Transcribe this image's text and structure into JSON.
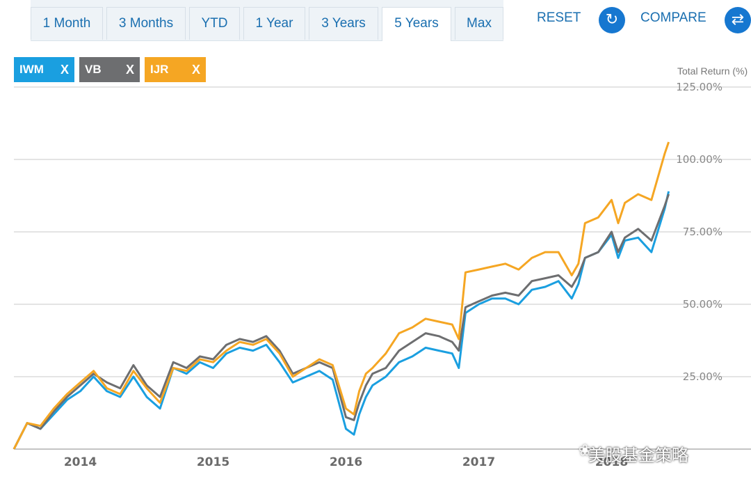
{
  "tabs": [
    {
      "label": "1 Month"
    },
    {
      "label": "3 Months"
    },
    {
      "label": "YTD"
    },
    {
      "label": "1 Year"
    },
    {
      "label": "3 Years"
    },
    {
      "label": "5 Years",
      "active": true
    },
    {
      "label": "Max"
    }
  ],
  "actions": {
    "reset_label": "RESET",
    "compare_label": "COMPARE",
    "reset_icon": "refresh-icon",
    "compare_icon": "swap-arrows-icon"
  },
  "tickers": [
    {
      "symbol": "IWM",
      "color": "#1a9fe0"
    },
    {
      "symbol": "VB",
      "color": "#6d6e70"
    },
    {
      "symbol": "IJR",
      "color": "#f5a623"
    }
  ],
  "chip_remove_label": "X",
  "watermark": "美股基金策略",
  "chart_data": {
    "type": "line",
    "ylabel": "Total Return (%)",
    "ylim": [
      0,
      125
    ],
    "y_ticks": [
      "25.00%",
      "50.00%",
      "75.00%",
      "100.00%",
      "125.00%"
    ],
    "y_tick_values": [
      25,
      50,
      75,
      100,
      125
    ],
    "x_range": [
      2013.5,
      2018.5
    ],
    "x_ticks": [
      "2014",
      "2015",
      "2016",
      "2017",
      "2018"
    ],
    "x_tick_values": [
      2014,
      2015,
      2016,
      2017,
      2018
    ],
    "grid": true,
    "series": [
      {
        "name": "IWM",
        "color": "#1a9fe0",
        "x": [
          2013.5,
          2013.6,
          2013.7,
          2013.8,
          2013.9,
          2014.0,
          2014.1,
          2014.2,
          2014.3,
          2014.4,
          2014.5,
          2014.6,
          2014.7,
          2014.8,
          2014.9,
          2015.0,
          2015.1,
          2015.2,
          2015.3,
          2015.4,
          2015.5,
          2015.6,
          2015.7,
          2015.8,
          2015.9,
          2016.0,
          2016.06,
          2016.1,
          2016.15,
          2016.2,
          2016.3,
          2016.4,
          2016.5,
          2016.6,
          2016.7,
          2016.8,
          2016.85,
          2016.9,
          2017.0,
          2017.1,
          2017.2,
          2017.3,
          2017.4,
          2017.5,
          2017.6,
          2017.7,
          2017.75,
          2017.8,
          2017.9,
          2018.0,
          2018.05,
          2018.1,
          2018.2,
          2018.3,
          2018.4,
          2018.43
        ],
        "values": [
          0,
          9,
          7,
          12,
          17,
          20,
          25,
          20,
          18,
          25,
          18,
          14,
          28,
          26,
          30,
          28,
          33,
          35,
          34,
          36,
          30,
          23,
          25,
          27,
          24,
          7,
          5,
          12,
          18,
          22,
          25,
          30,
          32,
          35,
          34,
          33,
          28,
          47,
          50,
          52,
          52,
          50,
          55,
          56,
          58,
          52,
          57,
          66,
          68,
          74,
          66,
          72,
          73,
          68,
          83,
          89
        ]
      },
      {
        "name": "VB",
        "color": "#6d6e70",
        "x": [
          2013.5,
          2013.6,
          2013.7,
          2013.8,
          2013.9,
          2014.0,
          2014.1,
          2014.2,
          2014.3,
          2014.4,
          2014.5,
          2014.6,
          2014.7,
          2014.8,
          2014.9,
          2015.0,
          2015.1,
          2015.2,
          2015.3,
          2015.4,
          2015.5,
          2015.6,
          2015.7,
          2015.8,
          2015.9,
          2016.0,
          2016.06,
          2016.1,
          2016.15,
          2016.2,
          2016.3,
          2016.4,
          2016.5,
          2016.6,
          2016.7,
          2016.8,
          2016.85,
          2016.9,
          2017.0,
          2017.1,
          2017.2,
          2017.3,
          2017.4,
          2017.5,
          2017.6,
          2017.7,
          2017.75,
          2017.8,
          2017.9,
          2018.0,
          2018.05,
          2018.1,
          2018.2,
          2018.3,
          2018.4,
          2018.43
        ],
        "values": [
          0,
          9,
          7,
          13,
          18,
          22,
          26,
          23,
          21,
          29,
          22,
          18,
          30,
          28,
          32,
          31,
          36,
          38,
          37,
          39,
          34,
          26,
          28,
          30,
          28,
          11,
          10,
          16,
          22,
          26,
          28,
          34,
          37,
          40,
          39,
          37,
          34,
          49,
          51,
          53,
          54,
          53,
          58,
          59,
          60,
          56,
          60,
          66,
          68,
          75,
          68,
          73,
          76,
          72,
          84,
          88
        ]
      },
      {
        "name": "IJR",
        "color": "#f5a623",
        "x": [
          2013.5,
          2013.6,
          2013.7,
          2013.8,
          2013.9,
          2014.0,
          2014.1,
          2014.2,
          2014.3,
          2014.4,
          2014.5,
          2014.6,
          2014.7,
          2014.8,
          2014.9,
          2015.0,
          2015.1,
          2015.2,
          2015.3,
          2015.4,
          2015.5,
          2015.6,
          2015.7,
          2015.8,
          2015.9,
          2016.0,
          2016.06,
          2016.1,
          2016.15,
          2016.2,
          2016.3,
          2016.4,
          2016.5,
          2016.6,
          2016.7,
          2016.8,
          2016.85,
          2016.9,
          2017.0,
          2017.1,
          2017.2,
          2017.3,
          2017.4,
          2017.5,
          2017.6,
          2017.7,
          2017.75,
          2017.8,
          2017.9,
          2018.0,
          2018.05,
          2018.1,
          2018.2,
          2018.3,
          2018.4,
          2018.43
        ],
        "values": [
          0,
          9,
          8,
          14,
          19,
          23,
          27,
          21,
          19,
          27,
          21,
          16,
          28,
          27,
          31,
          30,
          34,
          37,
          36,
          38,
          33,
          25,
          28,
          31,
          29,
          14,
          12,
          20,
          26,
          28,
          33,
          40,
          42,
          45,
          44,
          43,
          38,
          61,
          62,
          63,
          64,
          62,
          66,
          68,
          68,
          60,
          64,
          78,
          80,
          86,
          78,
          85,
          88,
          86,
          102,
          106
        ]
      }
    ]
  }
}
